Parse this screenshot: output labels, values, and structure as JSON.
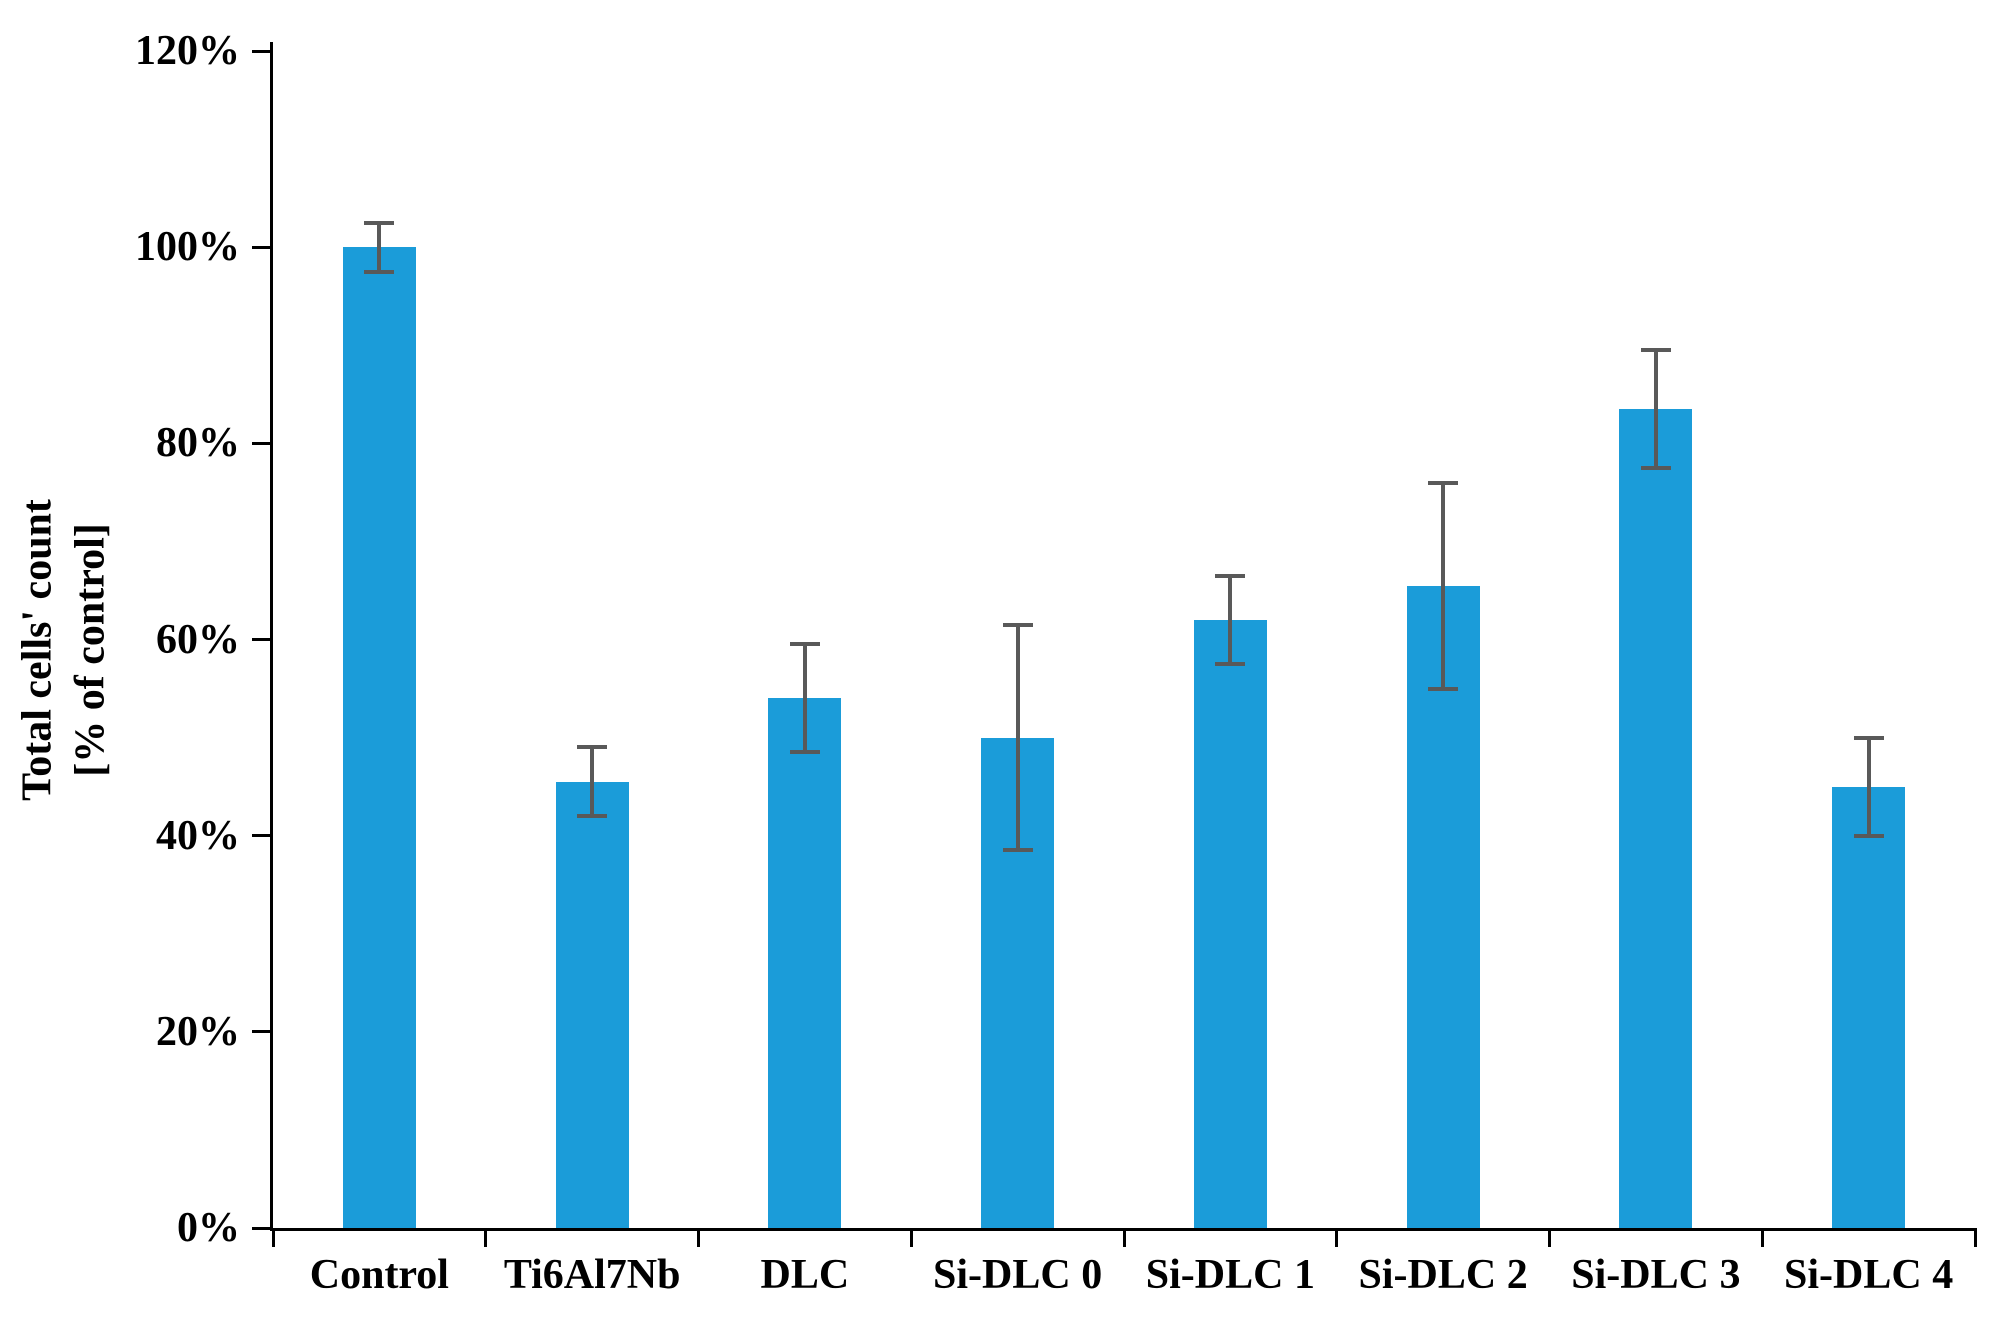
{
  "figure": {
    "background": "#ffffff"
  },
  "chart_data": {
    "type": "bar",
    "title": "",
    "categories": [
      "Control",
      "Ti6Al7Nb",
      "DLC",
      "Si-DLC 0",
      "Si-DLC 1",
      "Si-DLC 2",
      "Si-DLC 3",
      "Si-DLC 4"
    ],
    "values": [
      100,
      45.5,
      54,
      50,
      62,
      65.5,
      83.5,
      45
    ],
    "error_bars": [
      2.5,
      3.5,
      5.5,
      11.5,
      4.5,
      10.5,
      6,
      5
    ],
    "ylabel_line1": "Total cells' count",
    "ylabel_line2": "[% of control]",
    "xlabel": "",
    "ylim": [
      0,
      120
    ],
    "ytick_values": [
      0,
      20,
      40,
      60,
      80,
      100,
      120
    ],
    "ytick_labels": [
      "0%",
      "20%",
      "40%",
      "60%",
      "80%",
      "100%",
      "120%"
    ],
    "grid": false,
    "legend": "none",
    "bar_color": "#1b9cd9",
    "error_bar_color": "#595959",
    "axis_color": "#000000",
    "text_color": "#000000"
  }
}
